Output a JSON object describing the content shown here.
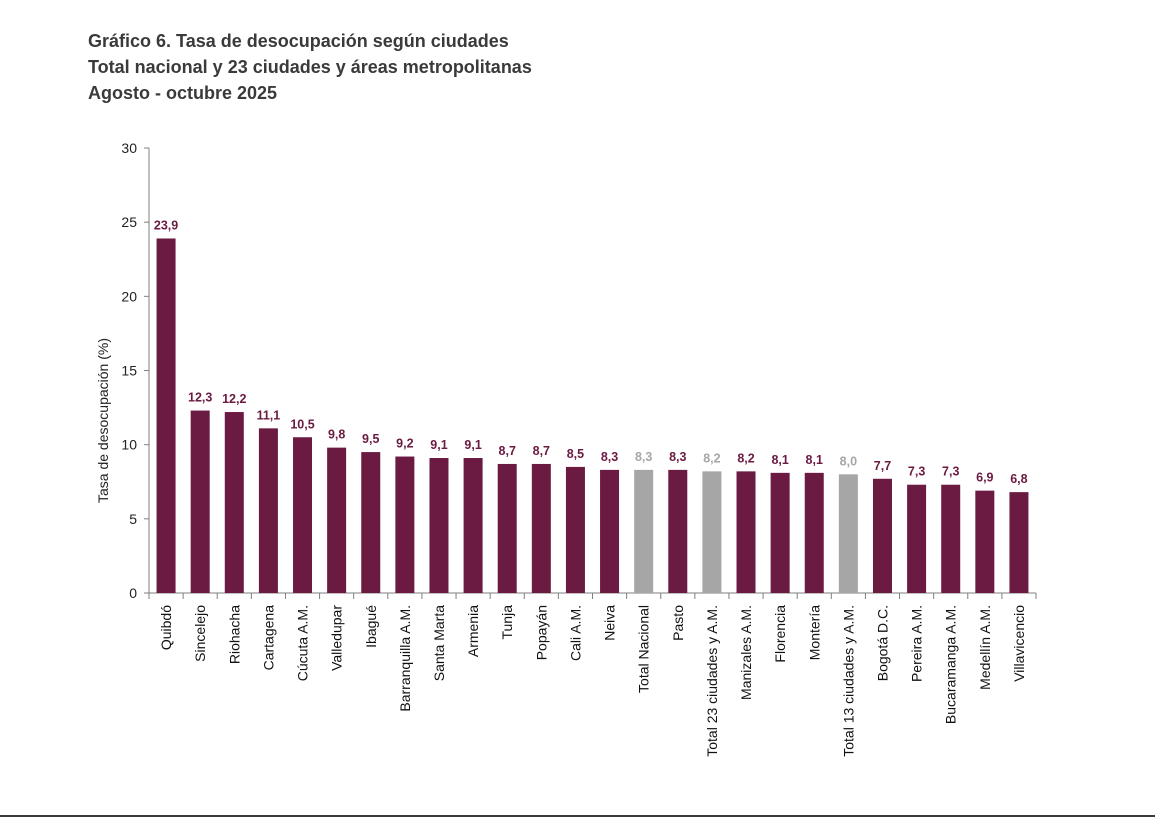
{
  "header": {
    "line1": "Gráfico 6. Tasa de desocupación según ciudades",
    "line2": "Total nacional y 23 ciudades y áreas metropolitanas",
    "line3": "Agosto - octubre 2025"
  },
  "chart_data": {
    "type": "bar",
    "title": "Gráfico 6. Tasa de desocupación según ciudades",
    "subtitle": "Total nacional y 23 ciudades y áreas metropolitanas — Agosto - octubre 2025",
    "xlabel": "",
    "ylabel": "Tasa de desocupación (%)",
    "ylim": [
      0,
      30
    ],
    "yticks": [
      0,
      5,
      10,
      15,
      20,
      25,
      30
    ],
    "grid": false,
    "legend": "none",
    "colors": {
      "city": "#6b1a42",
      "total": "#a6a6a6",
      "total_label": "#a6a6a6",
      "city_label": "#6b1a42"
    },
    "categories": [
      "Quibdó",
      "Sincelejo",
      "Riohacha",
      "Cartagena",
      "Cúcuta A.M.",
      "Valledupar",
      "Ibagué",
      "Barranquilla A.M.",
      "Santa Marta",
      "Armenia",
      "Tunja",
      "Popayán",
      "Cali A.M.",
      "Neiva",
      "Total Nacional",
      "Pasto",
      "Total 23 ciudades y A.M.",
      "Manizales A.M.",
      "Florencia",
      "Montería",
      "Total 13 ciudades y A.M.",
      "Bogotá D.C.",
      "Pereira A.M.",
      "Bucaramanga A.M.",
      "Medellín A.M.",
      "Villavicencio"
    ],
    "values": [
      23.9,
      12.3,
      12.2,
      11.1,
      10.5,
      9.8,
      9.5,
      9.2,
      9.1,
      9.1,
      8.7,
      8.7,
      8.5,
      8.3,
      8.3,
      8.3,
      8.2,
      8.2,
      8.1,
      8.1,
      8.0,
      7.7,
      7.3,
      7.3,
      6.9,
      6.8
    ],
    "value_labels": [
      "23,9",
      "12,3",
      "12,2",
      "11,1",
      "10,5",
      "9,8",
      "9,5",
      "9,2",
      "9,1",
      "9,1",
      "8,7",
      "8,7",
      "8,5",
      "8,3",
      "8,3",
      "8,3",
      "8,2",
      "8,2",
      "8,1",
      "8,1",
      "8,0",
      "7,7",
      "7,3",
      "7,3",
      "6,9",
      "6,8"
    ],
    "is_total": [
      false,
      false,
      false,
      false,
      false,
      false,
      false,
      false,
      false,
      false,
      false,
      false,
      false,
      false,
      true,
      false,
      true,
      false,
      false,
      false,
      true,
      false,
      false,
      false,
      false,
      false
    ]
  }
}
